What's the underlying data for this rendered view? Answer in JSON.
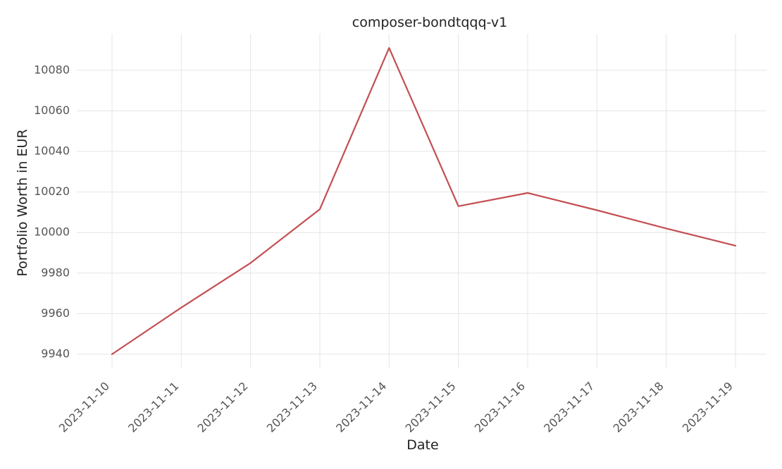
{
  "chart_data": {
    "type": "line",
    "title": "composer-bondtqqq-v1",
    "xlabel": "Date",
    "ylabel": "Portfolio Worth in EUR",
    "x": [
      "2023-11-10",
      "2023-11-11",
      "2023-11-12",
      "2023-11-13",
      "2023-11-14",
      "2023-11-15",
      "2023-11-16",
      "2023-11-17",
      "2023-11-18",
      "2023-11-19"
    ],
    "series": [
      {
        "color": "#c44e52",
        "values": [
          9940,
          9963,
          9985,
          10011.5,
          10091,
          10013,
          10019.5,
          10011,
          10002,
          9993.5
        ]
      }
    ],
    "ylim": [
      9934,
      10100
    ],
    "yticks": [
      9940,
      9960,
      9980,
      10000,
      10020,
      10040,
      10060,
      10080
    ],
    "grid": true,
    "legend": "none"
  }
}
